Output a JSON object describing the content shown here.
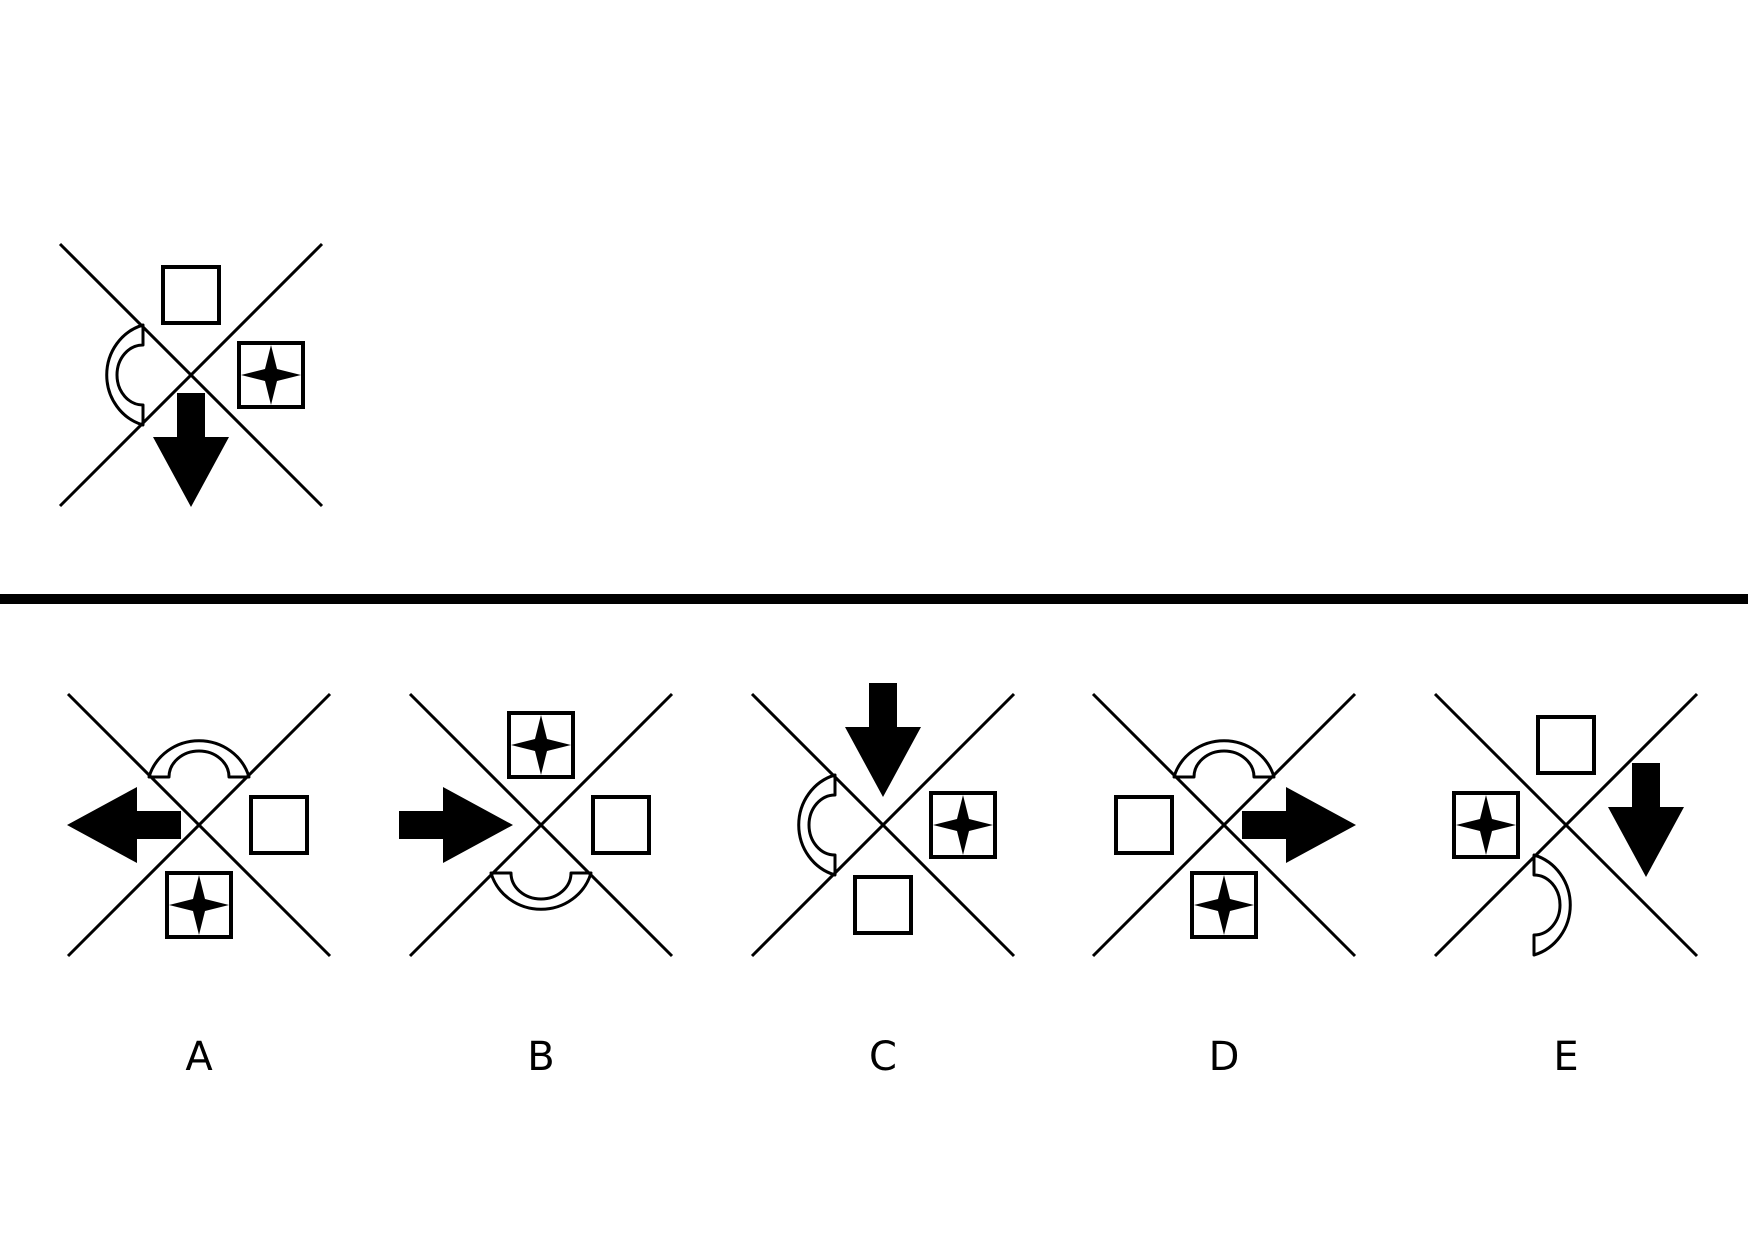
{
  "question": {
    "figure": {
      "up": "square",
      "right": "star-square",
      "down": "arrow-down",
      "left": "arc-left"
    }
  },
  "options": [
    {
      "label": "A",
      "figure": {
        "up": "arc-up",
        "right": "square",
        "down": "star-square",
        "left": "arrow-left"
      }
    },
    {
      "label": "B",
      "figure": {
        "up": "star-square",
        "right": "square",
        "down": "arc-down",
        "left": "arrow-right"
      }
    },
    {
      "label": "C",
      "figure": {
        "up": "arrow-down",
        "right": "star-square",
        "down": "square",
        "left": "arc-left"
      }
    },
    {
      "label": "D",
      "figure": {
        "up": "arc-up",
        "right": "arrow-right",
        "down": "star-square",
        "left": "square"
      }
    },
    {
      "label": "E",
      "figure": {
        "up": "square",
        "right": "arrow-down",
        "down": "arc-right",
        "left": "star-square"
      }
    }
  ],
  "colors": {
    "ink": "#000000",
    "background": "#ffffff"
  }
}
